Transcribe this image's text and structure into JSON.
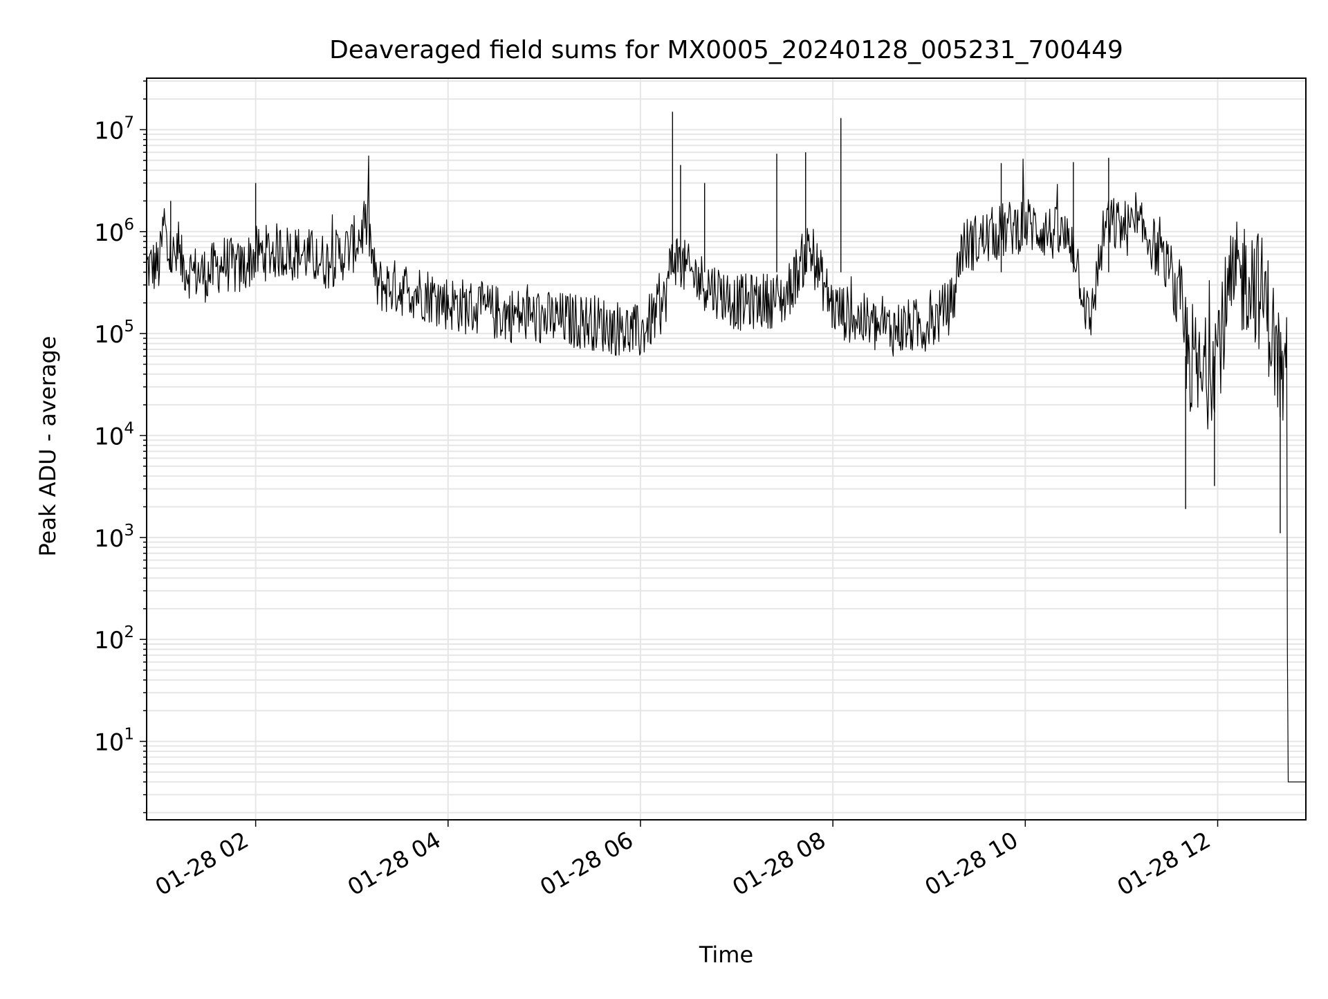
{
  "chart_data": {
    "type": "line",
    "title": "Deaveraged field sums for MX0005_20240128_005231_700449",
    "xlabel": "Time",
    "ylabel": "Peak ADU - average",
    "yscale": "log",
    "grid": "on (major and minor)",
    "line_color": "#000000",
    "grid_color": "#e6e6e6",
    "xlim": [
      "2024-01-28 00:52",
      "2024-01-28 12:55"
    ],
    "ylim": [
      1.7,
      32000000
    ],
    "x_ticks": [
      {
        "value": "2024-01-28 02:00",
        "label": "01-28 02"
      },
      {
        "value": "2024-01-28 04:00",
        "label": "01-28 04"
      },
      {
        "value": "2024-01-28 06:00",
        "label": "01-28 06"
      },
      {
        "value": "2024-01-28 08:00",
        "label": "01-28 08"
      },
      {
        "value": "2024-01-28 10:00",
        "label": "01-28 10"
      },
      {
        "value": "2024-01-28 12:00",
        "label": "01-28 12"
      }
    ],
    "y_ticks": [
      {
        "value": 10,
        "base": "10",
        "exp": "1"
      },
      {
        "value": 100,
        "base": "10",
        "exp": "2"
      },
      {
        "value": 1000,
        "base": "10",
        "exp": "3"
      },
      {
        "value": 10000,
        "base": "10",
        "exp": "4"
      },
      {
        "value": 100000,
        "base": "10",
        "exp": "5"
      },
      {
        "value": 1000000,
        "base": "10",
        "exp": "6"
      },
      {
        "value": 10000000,
        "base": "10",
        "exp": "7"
      }
    ],
    "series": [
      {
        "points": [
          [
            "2024-01-28 00:52",
            450000
          ],
          [
            "2024-01-28 01:00",
            460000
          ],
          [
            "2024-01-28 01:03",
            1300000
          ],
          [
            "2024-01-28 01:05",
            600000
          ],
          [
            "2024-01-28 01:10",
            550000
          ],
          [
            "2024-01-28 01:20",
            400000
          ],
          [
            "2024-01-28 01:30",
            380000
          ],
          [
            "2024-01-28 01:40",
            500000
          ],
          [
            "2024-01-28 01:50",
            420000
          ],
          [
            "2024-01-28 02:00",
            600000
          ],
          [
            "2024-01-28 02:15",
            650000
          ],
          [
            "2024-01-28 02:30",
            600000
          ],
          [
            "2024-01-28 02:45",
            500000
          ],
          [
            "2024-01-28 03:00",
            700000
          ],
          [
            "2024-01-28 03:10",
            1200000
          ],
          [
            "2024-01-28 03:15",
            300000
          ],
          [
            "2024-01-28 03:30",
            280000
          ],
          [
            "2024-01-28 03:45",
            250000
          ],
          [
            "2024-01-28 04:00",
            200000
          ],
          [
            "2024-01-28 04:30",
            160000
          ],
          [
            "2024-01-28 05:00",
            140000
          ],
          [
            "2024-01-28 05:30",
            130000
          ],
          [
            "2024-01-28 06:00",
            100000
          ],
          [
            "2024-01-28 06:15",
            200000
          ],
          [
            "2024-01-28 06:20",
            600000
          ],
          [
            "2024-01-28 06:30",
            400000
          ],
          [
            "2024-01-28 07:00",
            200000
          ],
          [
            "2024-01-28 07:30",
            220000
          ],
          [
            "2024-01-28 07:45",
            700000
          ],
          [
            "2024-01-28 08:00",
            180000
          ],
          [
            "2024-01-28 08:30",
            110000
          ],
          [
            "2024-01-28 09:00",
            120000
          ],
          [
            "2024-01-28 09:15",
            200000
          ],
          [
            "2024-01-28 09:20",
            700000
          ],
          [
            "2024-01-28 09:45",
            1000000
          ],
          [
            "2024-01-28 10:00",
            1200000
          ],
          [
            "2024-01-28 10:30",
            800000
          ],
          [
            "2024-01-28 10:40",
            120000
          ],
          [
            "2024-01-28 10:50",
            1200000
          ],
          [
            "2024-01-28 11:15",
            1000000
          ],
          [
            "2024-01-28 11:30",
            400000
          ],
          [
            "2024-01-28 11:40",
            80000
          ],
          [
            "2024-01-28 11:50",
            30000
          ],
          [
            "2024-01-28 12:00",
            80000
          ],
          [
            "2024-01-28 12:10",
            300000
          ],
          [
            "2024-01-28 12:20",
            400000
          ],
          [
            "2024-01-28 12:30",
            200000
          ],
          [
            "2024-01-28 12:37",
            60000
          ],
          [
            "2024-01-28 12:43",
            20000
          ],
          [
            "2024-01-28 12:44",
            4
          ],
          [
            "2024-01-28 12:55",
            4
          ]
        ],
        "notable_spikes": [
          [
            "2024-01-28 01:07",
            2000000
          ],
          [
            "2024-01-28 02:00",
            3000000
          ],
          [
            "2024-01-28 06:20",
            15000000
          ],
          [
            "2024-01-28 06:25",
            4500000
          ],
          [
            "2024-01-28 06:40",
            3000000
          ],
          [
            "2024-01-28 07:25",
            5800000
          ],
          [
            "2024-01-28 07:43",
            6000000
          ],
          [
            "2024-01-28 08:05",
            13000000
          ],
          [
            "2024-01-28 09:45",
            4700000
          ],
          [
            "2024-01-28 10:30",
            4800000
          ],
          [
            "2024-01-28 10:52",
            5300000
          ],
          [
            "2024-01-28 11:40",
            1900
          ],
          [
            "2024-01-28 11:58",
            3200
          ],
          [
            "2024-01-28 12:39",
            1100
          ]
        ]
      }
    ]
  }
}
